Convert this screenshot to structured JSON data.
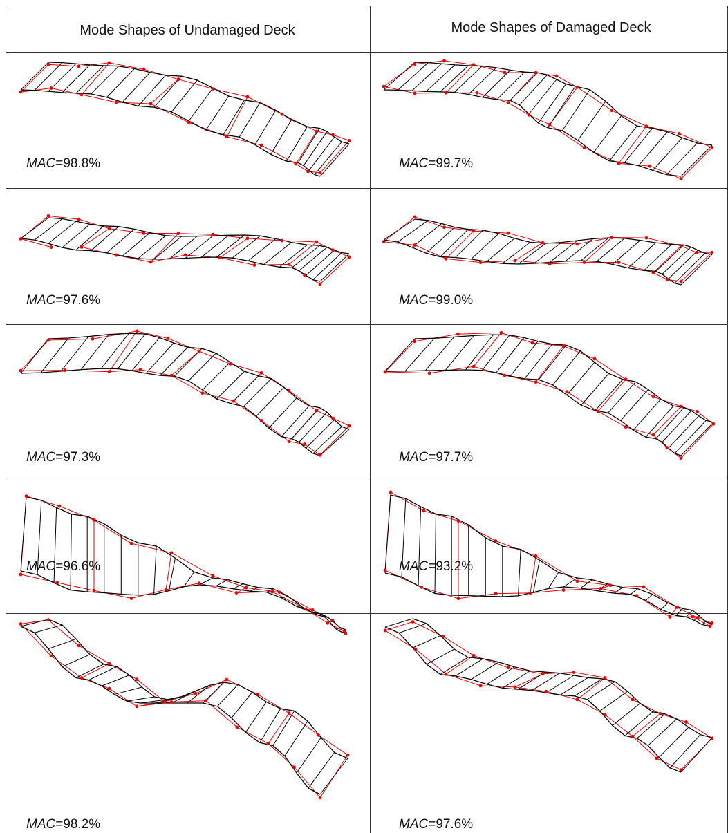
{
  "table": {
    "header": [
      "Mode Shapes of Undamaged Deck",
      "Mode Shapes of Damaged Deck"
    ],
    "rows": [
      [
        {
          "label": "MAC",
          "value": "=98.8%"
        },
        {
          "label": "MAC",
          "value": "=99.7%"
        }
      ],
      [
        {
          "label": "MAC",
          "value": "=97.6%"
        },
        {
          "label": "MAC",
          "value": "=99.0%"
        }
      ],
      [
        {
          "label": "MAC",
          "value": "=97.3%"
        },
        {
          "label": "MAC",
          "value": "=97.7%"
        }
      ],
      [
        {
          "label": "MAC",
          "value": "=96.6%"
        },
        {
          "label": "MAC",
          "value": "=93.2%"
        }
      ],
      [
        {
          "label": "MAC",
          "value": "=98.2%"
        },
        {
          "label": "MAC",
          "value": "=97.6%"
        }
      ]
    ]
  }
}
